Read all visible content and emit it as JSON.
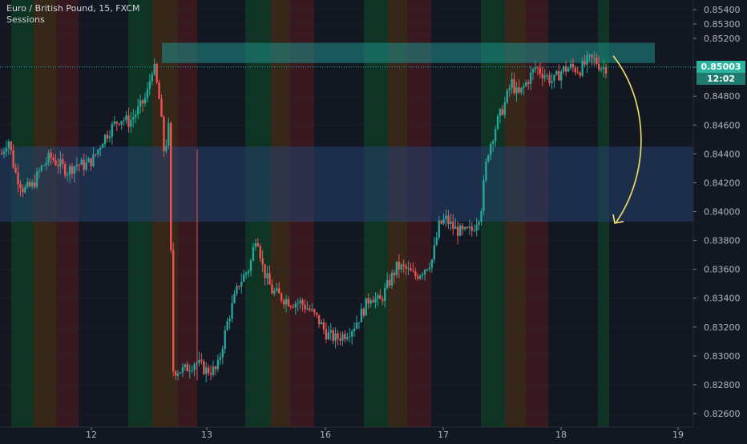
{
  "header": {
    "title": "Euro / British Pound, 15, FXCM",
    "indicator": "Sessions"
  },
  "price_badge": {
    "value": "0.85003",
    "countdown": "12:02"
  },
  "colors": {
    "background": "#131722",
    "up": "#26a69a",
    "down": "#ef5350",
    "session_green": "#0f3a24",
    "session_orange": "#3d2a18",
    "session_red": "#401a20",
    "resistance_zone": "#1f8f8a",
    "support_zone": "#27416e",
    "arrow": "#f2e46a",
    "axis_text": "#b2b5be"
  },
  "chart_data": {
    "type": "candlestick",
    "title": "Euro / British Pound, 15, FXCM",
    "xlabel": "",
    "ylabel": "",
    "ylim": [
      0.8255,
      0.8547
    ],
    "x_tick_labels": [
      "12",
      "13",
      "16",
      "17",
      "18",
      "19"
    ],
    "y_tick_labels": [
      "0.85400",
      "0.85300",
      "0.85200",
      "0.85000",
      "0.84800",
      "0.84600",
      "0.84400",
      "0.84200",
      "0.84000",
      "0.83800",
      "0.83600",
      "0.83400",
      "0.83200",
      "0.83000",
      "0.82800",
      "0.82600"
    ],
    "y_ticks": [
      0.854,
      0.853,
      0.852,
      0.85,
      0.848,
      0.846,
      0.844,
      0.842,
      0.84,
      0.838,
      0.836,
      0.834,
      0.832,
      0.83,
      0.828,
      0.826
    ],
    "last_price": 0.85003,
    "zones": [
      {
        "name": "resistance-zone",
        "from": 0.8503,
        "to": 0.8517,
        "x_start": "12 18:00",
        "x_end": "18 15:00"
      },
      {
        "name": "support-zone",
        "from": 0.8393,
        "to": 0.8445,
        "x_start": "chart-start",
        "x_end": "chart-end"
      }
    ],
    "price_path": [
      [
        0.844,
        0
      ],
      [
        0.8451,
        6
      ],
      [
        0.8428,
        12
      ],
      [
        0.8415,
        20
      ],
      [
        0.8418,
        28
      ],
      [
        0.843,
        36
      ],
      [
        0.8438,
        44
      ],
      [
        0.8433,
        52
      ],
      [
        0.8428,
        60
      ],
      [
        0.8433,
        68
      ],
      [
        0.8432,
        76
      ],
      [
        0.8437,
        84
      ],
      [
        0.845,
        92
      ],
      [
        0.8458,
        100
      ],
      [
        0.8465,
        108
      ],
      [
        0.8462,
        116
      ],
      [
        0.847,
        124
      ],
      [
        0.848,
        132
      ],
      [
        0.8503,
        138
      ],
      [
        0.8475,
        144
      ],
      [
        0.844,
        148
      ],
      [
        0.8458,
        152
      ],
      [
        0.829,
        156
      ],
      [
        0.829,
        166
      ],
      [
        0.8296,
        176
      ],
      [
        0.829,
        186
      ],
      [
        0.829,
        196
      ],
      [
        0.8325,
        206
      ],
      [
        0.835,
        216
      ],
      [
        0.8362,
        226
      ],
      [
        0.8386,
        232
      ],
      [
        0.836,
        238
      ],
      [
        0.8345,
        246
      ],
      [
        0.834,
        256
      ],
      [
        0.8337,
        264
      ],
      [
        0.8337,
        272
      ],
      [
        0.8332,
        280
      ],
      [
        0.8325,
        288
      ],
      [
        0.8315,
        296
      ],
      [
        0.8312,
        304
      ],
      [
        0.8315,
        312
      ],
      [
        0.832,
        320
      ],
      [
        0.833,
        328
      ],
      [
        0.8342,
        336
      ],
      [
        0.8337,
        344
      ],
      [
        0.835,
        352
      ],
      [
        0.8362,
        360
      ],
      [
        0.836,
        368
      ],
      [
        0.8355,
        376
      ],
      [
        0.836,
        384
      ],
      [
        0.8367,
        392
      ],
      [
        0.839,
        398
      ],
      [
        0.8395,
        404
      ],
      [
        0.8388,
        412
      ],
      [
        0.8385,
        420
      ],
      [
        0.8387,
        428
      ],
      [
        0.84,
        436
      ],
      [
        0.844,
        442
      ],
      [
        0.846,
        450
      ],
      [
        0.8475,
        458
      ],
      [
        0.849,
        464
      ],
      [
        0.848,
        470
      ],
      [
        0.849,
        478
      ],
      [
        0.85,
        486
      ],
      [
        0.8495,
        494
      ],
      [
        0.849,
        502
      ],
      [
        0.8498,
        510
      ],
      [
        0.85,
        518
      ],
      [
        0.8498,
        526
      ],
      [
        0.8505,
        534
      ],
      [
        0.8505,
        540
      ],
      [
        0.85,
        546
      ],
      [
        0.85,
        550
      ]
    ],
    "projection_arrow": {
      "from": 0.8508,
      "to": 0.8392
    }
  }
}
